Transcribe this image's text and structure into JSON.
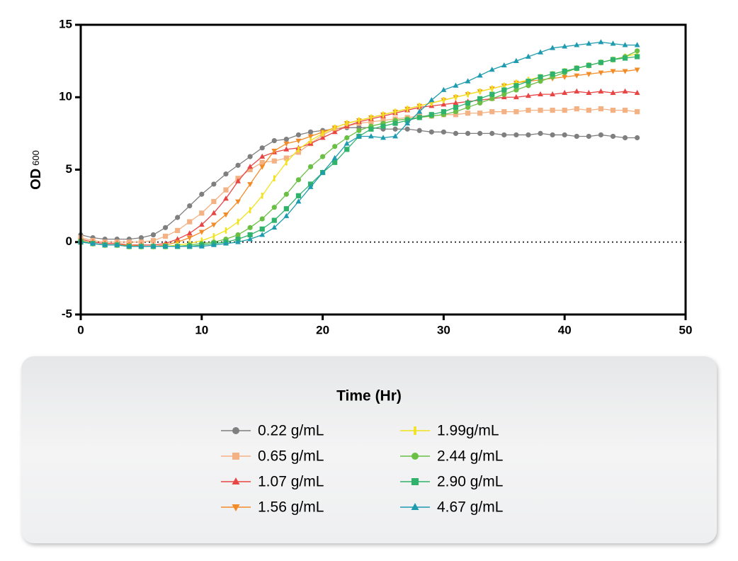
{
  "chart_data": {
    "type": "line",
    "y_label": "OD",
    "y_label_subscript": "600",
    "x_label": "Time (Hr)",
    "xlim": [
      0,
      50
    ],
    "xticks": [
      0,
      10,
      20,
      30,
      40,
      50
    ],
    "ylim": [
      -5,
      15
    ],
    "yticks": [
      -5,
      0,
      5,
      10,
      15
    ],
    "zero_line": true,
    "x": [
      0,
      1,
      2,
      3,
      4,
      5,
      6,
      7,
      8,
      9,
      10,
      11,
      12,
      13,
      14,
      15,
      16,
      17,
      18,
      19,
      20,
      21,
      22,
      23,
      24,
      25,
      26,
      27,
      28,
      29,
      30,
      31,
      32,
      33,
      34,
      35,
      36,
      37,
      38,
      39,
      40,
      41,
      42,
      43,
      44,
      45,
      46
    ],
    "series": [
      {
        "name": "0.22 g/mL",
        "color": "#7f7f7f",
        "marker": "circle",
        "values": [
          0.5,
          0.3,
          0.2,
          0.2,
          0.2,
          0.3,
          0.5,
          1.0,
          1.7,
          2.5,
          3.3,
          4.0,
          4.7,
          5.3,
          5.9,
          6.5,
          7.0,
          7.1,
          7.4,
          7.6,
          7.7,
          7.8,
          7.9,
          7.9,
          7.9,
          7.8,
          7.8,
          7.8,
          7.7,
          7.6,
          7.6,
          7.5,
          7.5,
          7.5,
          7.5,
          7.4,
          7.4,
          7.4,
          7.5,
          7.4,
          7.4,
          7.3,
          7.3,
          7.4,
          7.3,
          7.2,
          7.2
        ]
      },
      {
        "name": "0.65 g/mL",
        "color": "#f4b183",
        "marker": "square",
        "values": [
          0.3,
          0.1,
          0,
          0,
          0,
          0,
          0.1,
          0.4,
          0.8,
          1.4,
          2.0,
          2.8,
          3.6,
          4.4,
          5.0,
          5.5,
          5.6,
          5.8,
          6.2,
          6.8,
          7.4,
          7.8,
          8.0,
          8.2,
          8.3,
          8.4,
          8.5,
          8.6,
          8.7,
          8.7,
          8.8,
          8.8,
          8.9,
          8.9,
          9.0,
          9.0,
          9.0,
          9.1,
          9.1,
          9.1,
          9.1,
          9.2,
          9.1,
          9.2,
          9.1,
          9.1,
          9.0
        ]
      },
      {
        "name": "1.07 g/mL",
        "color": "#e84545",
        "marker": "triangle-up",
        "values": [
          0.2,
          0,
          -0.1,
          -0.1,
          -0.2,
          -0.2,
          -0.2,
          -0.1,
          0.2,
          0.6,
          1.2,
          2.0,
          3.0,
          4.2,
          5.2,
          5.9,
          6.2,
          6.4,
          6.5,
          6.8,
          7.2,
          7.6,
          8.0,
          8.3,
          8.5,
          8.7,
          8.9,
          9.1,
          9.3,
          9.4,
          9.5,
          9.6,
          9.7,
          9.8,
          9.9,
          10.0,
          10.0,
          10.1,
          10.2,
          10.2,
          10.3,
          10.4,
          10.3,
          10.4,
          10.3,
          10.4,
          10.3
        ]
      },
      {
        "name": "1.56 g/mL",
        "color": "#f28c28",
        "marker": "triangle-down",
        "values": [
          0.1,
          -0.1,
          -0.2,
          -0.2,
          -0.2,
          -0.3,
          -0.3,
          -0.2,
          0,
          0.3,
          0.7,
          1.2,
          1.9,
          2.8,
          4.0,
          5.2,
          6.3,
          6.8,
          7.0,
          7.3,
          7.6,
          7.9,
          8.2,
          8.4,
          8.6,
          8.8,
          9.0,
          9.2,
          9.4,
          9.6,
          9.8,
          10.0,
          10.2,
          10.4,
          10.6,
          10.8,
          11.0,
          11.1,
          11.2,
          11.3,
          11.4,
          11.5,
          11.6,
          11.7,
          11.8,
          11.8,
          11.9
        ]
      },
      {
        "name": "1.99g/mL",
        "color": "#f2e21b",
        "marker": "bar",
        "values": [
          0.1,
          -0.1,
          -0.2,
          -0.2,
          -0.3,
          -0.3,
          -0.3,
          -0.3,
          -0.2,
          -0.1,
          0.1,
          0.4,
          0.8,
          1.4,
          2.2,
          3.2,
          4.4,
          5.5,
          6.4,
          7.0,
          7.5,
          7.9,
          8.2,
          8.4,
          8.6,
          8.8,
          9.0,
          9.2,
          9.4,
          9.6,
          9.8,
          10.0,
          10.2,
          10.4,
          10.6,
          10.8,
          11.0,
          11.2,
          11.4,
          11.6,
          11.8,
          12.0,
          12.2,
          12.4,
          12.6,
          12.8,
          13.0
        ]
      },
      {
        "name": "2.44 g/mL",
        "color": "#6abf45",
        "marker": "circle",
        "values": [
          0.1,
          -0.1,
          -0.2,
          -0.2,
          -0.3,
          -0.3,
          -0.3,
          -0.3,
          -0.3,
          -0.2,
          -0.1,
          0,
          0.2,
          0.5,
          1.0,
          1.6,
          2.4,
          3.3,
          4.3,
          5.2,
          5.9,
          6.6,
          7.2,
          7.7,
          8.0,
          8.2,
          8.4,
          8.5,
          8.6,
          8.7,
          8.8,
          9.0,
          9.3,
          9.6,
          9.9,
          10.2,
          10.5,
          10.8,
          11.1,
          11.4,
          11.7,
          12.0,
          12.2,
          12.4,
          12.6,
          12.8,
          13.2
        ]
      },
      {
        "name": "2.90 g/mL",
        "color": "#2fb36b",
        "marker": "square",
        "values": [
          0,
          -0.1,
          -0.2,
          -0.2,
          -0.3,
          -0.3,
          -0.3,
          -0.3,
          -0.3,
          -0.3,
          -0.2,
          -0.1,
          0,
          0.2,
          0.5,
          0.9,
          1.5,
          2.3,
          3.2,
          4.0,
          4.8,
          5.5,
          6.4,
          7.3,
          7.8,
          8.0,
          8.2,
          8.4,
          8.6,
          8.8,
          9.0,
          9.3,
          9.6,
          9.9,
          10.2,
          10.5,
          10.8,
          11.1,
          11.4,
          11.6,
          11.8,
          12.0,
          12.2,
          12.4,
          12.6,
          12.7,
          12.8
        ]
      },
      {
        "name": "4.67 g/mL",
        "color": "#1f9bb0",
        "marker": "triangle-up",
        "values": [
          0,
          -0.1,
          -0.2,
          -0.2,
          -0.3,
          -0.3,
          -0.3,
          -0.3,
          -0.3,
          -0.3,
          -0.3,
          -0.2,
          -0.1,
          0,
          0.2,
          0.5,
          1.0,
          1.8,
          2.8,
          3.8,
          4.8,
          5.8,
          6.8,
          7.3,
          7.3,
          7.2,
          7.3,
          8.2,
          9.0,
          9.8,
          10.5,
          10.8,
          11.1,
          11.5,
          11.9,
          12.2,
          12.5,
          12.8,
          13.1,
          13.4,
          13.5,
          13.6,
          13.7,
          13.8,
          13.7,
          13.6,
          13.6
        ]
      }
    ]
  }
}
